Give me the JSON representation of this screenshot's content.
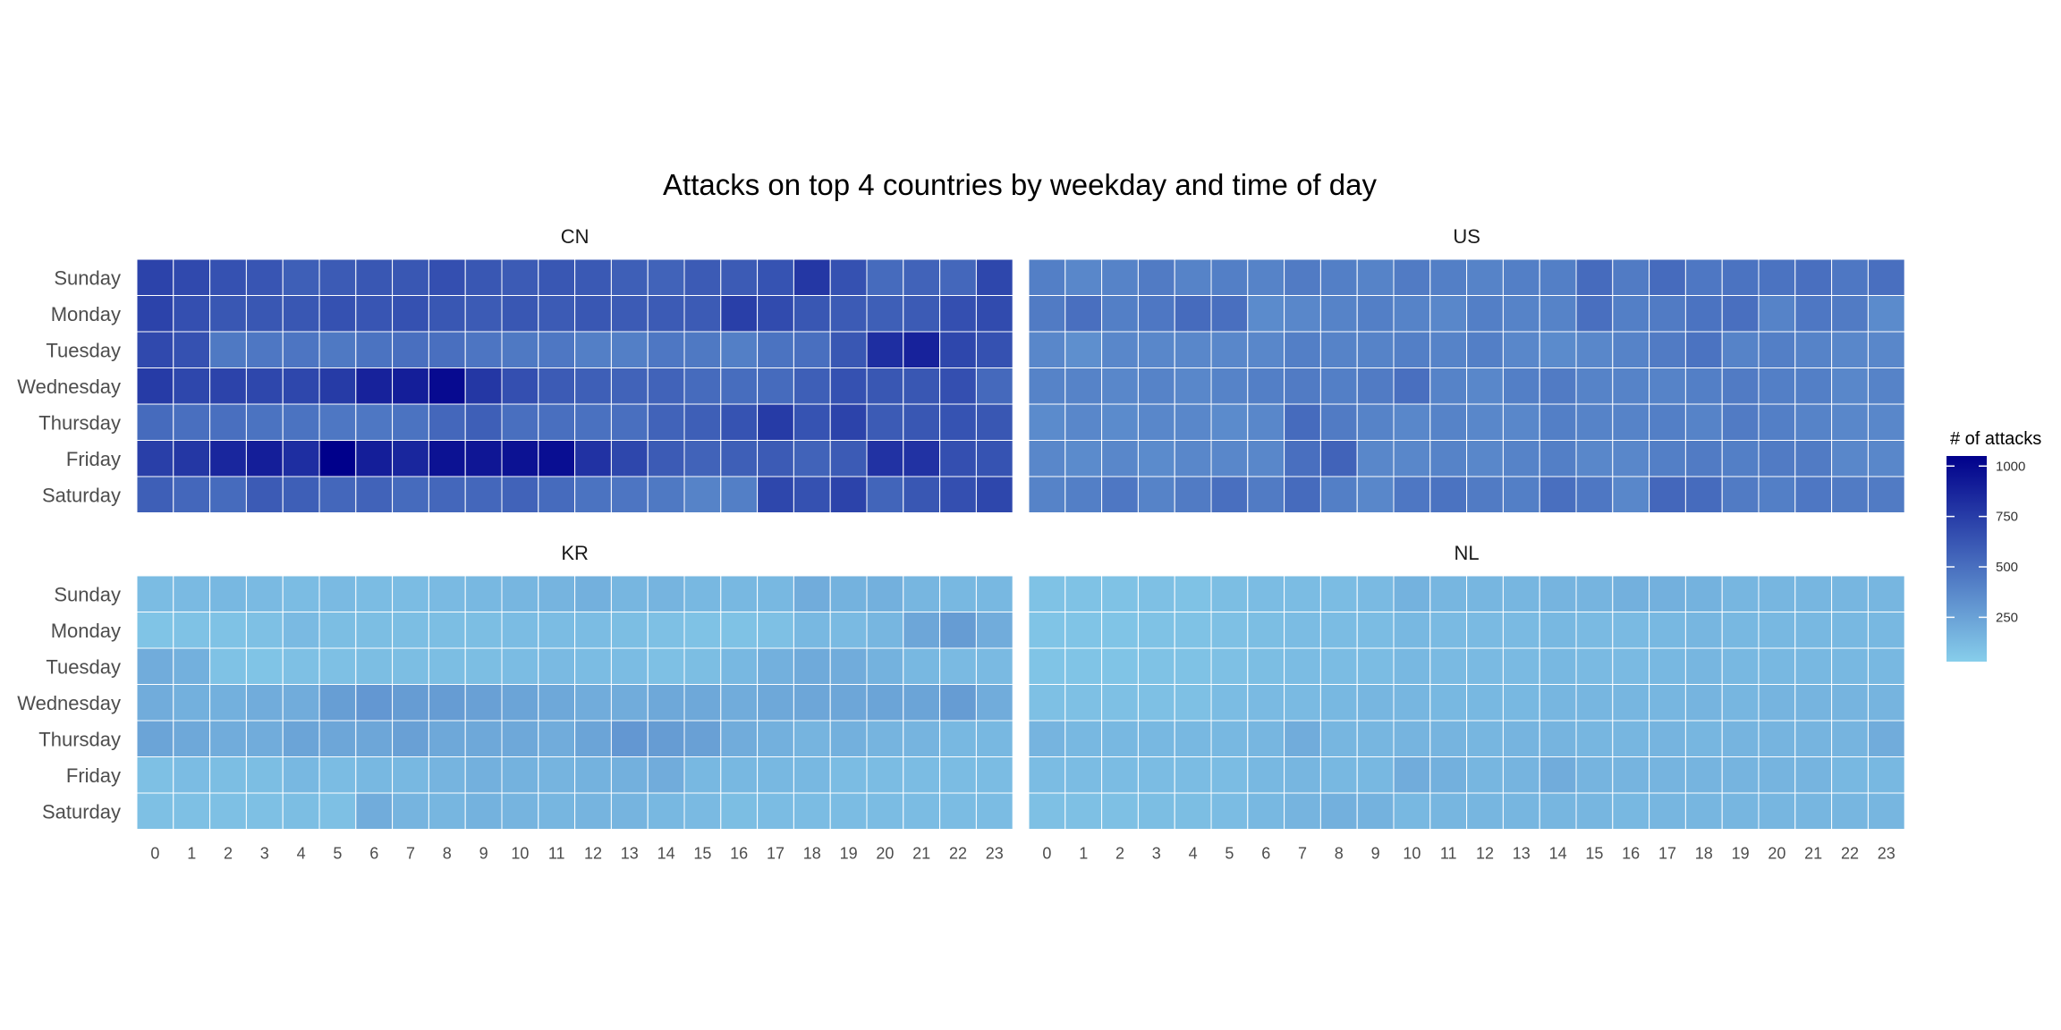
{
  "chart_data": {
    "type": "heatmap",
    "title": "Attacks on top 4 countries by weekday and time of day",
    "x": [
      "0",
      "1",
      "2",
      "3",
      "4",
      "5",
      "6",
      "7",
      "8",
      "9",
      "10",
      "11",
      "12",
      "13",
      "14",
      "15",
      "16",
      "17",
      "18",
      "19",
      "20",
      "21",
      "22",
      "23"
    ],
    "y": [
      "Sunday",
      "Monday",
      "Tuesday",
      "Wednesday",
      "Thursday",
      "Friday",
      "Saturday"
    ],
    "legend": {
      "title": "# of attacks",
      "ticks": [
        "250",
        "500",
        "750",
        "1000"
      ],
      "tick_values": [
        250,
        500,
        750,
        1000
      ],
      "min": 30,
      "max": 1050,
      "low_color": "#87ceeb",
      "high_color": "#00008b",
      "placement": "right"
    },
    "grid": false,
    "panels": [
      {
        "name": "CN",
        "values": [
          [
            720,
            690,
            650,
            630,
            580,
            600,
            620,
            620,
            660,
            620,
            600,
            620,
            610,
            580,
            560,
            600,
            600,
            640,
            780,
            650,
            520,
            560,
            540,
            700
          ],
          [
            720,
            660,
            620,
            620,
            620,
            650,
            630,
            650,
            620,
            600,
            620,
            600,
            620,
            600,
            600,
            600,
            740,
            680,
            620,
            600,
            580,
            600,
            660,
            680
          ],
          [
            690,
            650,
            450,
            460,
            470,
            450,
            480,
            500,
            500,
            470,
            450,
            460,
            420,
            420,
            460,
            450,
            420,
            480,
            500,
            620,
            820,
            880,
            700,
            650
          ],
          [
            760,
            700,
            720,
            700,
            700,
            760,
            880,
            900,
            1000,
            780,
            660,
            600,
            580,
            560,
            560,
            520,
            510,
            520,
            580,
            650,
            620,
            620,
            660,
            530
          ],
          [
            520,
            500,
            500,
            480,
            480,
            460,
            460,
            480,
            540,
            580,
            500,
            500,
            490,
            500,
            560,
            580,
            640,
            760,
            640,
            720,
            600,
            620,
            640,
            620
          ],
          [
            740,
            780,
            860,
            900,
            820,
            1050,
            900,
            860,
            960,
            940,
            960,
            980,
            800,
            700,
            600,
            560,
            580,
            600,
            560,
            600,
            800,
            800,
            660,
            640
          ],
          [
            580,
            540,
            520,
            600,
            580,
            540,
            560,
            520,
            540,
            540,
            560,
            520,
            480,
            470,
            450,
            400,
            420,
            700,
            650,
            720,
            550,
            620,
            660,
            700
          ]
        ]
      },
      {
        "name": "US",
        "values": [
          [
            420,
            380,
            400,
            440,
            400,
            420,
            400,
            440,
            420,
            400,
            440,
            420,
            400,
            420,
            420,
            520,
            440,
            520,
            460,
            480,
            480,
            500,
            460,
            500
          ],
          [
            440,
            500,
            420,
            460,
            520,
            500,
            360,
            380,
            400,
            420,
            400,
            380,
            420,
            400,
            400,
            500,
            420,
            440,
            480,
            500,
            400,
            460,
            440,
            360
          ],
          [
            380,
            340,
            380,
            380,
            380,
            380,
            380,
            420,
            400,
            400,
            420,
            400,
            420,
            380,
            360,
            380,
            400,
            440,
            480,
            400,
            420,
            400,
            380,
            380
          ],
          [
            400,
            400,
            380,
            400,
            380,
            400,
            420,
            440,
            420,
            440,
            500,
            400,
            380,
            420,
            440,
            400,
            400,
            400,
            420,
            440,
            420,
            420,
            380,
            400
          ],
          [
            360,
            380,
            360,
            380,
            380,
            360,
            380,
            520,
            440,
            400,
            380,
            400,
            380,
            380,
            420,
            400,
            400,
            420,
            400,
            440,
            420,
            400,
            380,
            380
          ],
          [
            380,
            360,
            380,
            360,
            380,
            380,
            380,
            500,
            560,
            380,
            380,
            400,
            380,
            400,
            420,
            380,
            380,
            420,
            440,
            420,
            440,
            440,
            380,
            380
          ],
          [
            400,
            420,
            460,
            400,
            440,
            500,
            440,
            520,
            420,
            380,
            460,
            480,
            440,
            420,
            500,
            460,
            380,
            540,
            520,
            440,
            420,
            460,
            440,
            440
          ]
        ]
      },
      {
        "name": "KR",
        "values": [
          [
            120,
            130,
            140,
            130,
            120,
            130,
            120,
            120,
            130,
            140,
            150,
            160,
            180,
            150,
            160,
            140,
            140,
            140,
            200,
            170,
            180,
            150,
            140,
            140
          ],
          [
            80,
            90,
            90,
            100,
            130,
            110,
            110,
            110,
            110,
            110,
            120,
            120,
            120,
            110,
            100,
            90,
            90,
            100,
            140,
            130,
            150,
            230,
            280,
            200
          ],
          [
            200,
            180,
            90,
            80,
            100,
            100,
            110,
            110,
            110,
            110,
            120,
            130,
            120,
            120,
            100,
            110,
            140,
            180,
            210,
            200,
            170,
            140,
            130,
            130
          ],
          [
            200,
            180,
            180,
            200,
            200,
            270,
            300,
            280,
            280,
            260,
            240,
            220,
            200,
            200,
            220,
            220,
            200,
            220,
            230,
            230,
            240,
            240,
            280,
            200
          ],
          [
            240,
            220,
            200,
            200,
            240,
            230,
            230,
            260,
            220,
            220,
            220,
            200,
            240,
            300,
            280,
            260,
            200,
            180,
            160,
            180,
            160,
            160,
            140,
            140
          ],
          [
            100,
            120,
            110,
            110,
            140,
            120,
            140,
            140,
            160,
            180,
            170,
            160,
            170,
            180,
            200,
            140,
            140,
            140,
            140,
            120,
            120,
            120,
            120,
            120
          ],
          [
            100,
            100,
            100,
            100,
            110,
            100,
            200,
            160,
            150,
            170,
            160,
            150,
            160,
            160,
            140,
            130,
            110,
            120,
            120,
            120,
            120,
            120,
            120,
            120
          ]
        ]
      },
      {
        "name": "NL",
        "values": [
          [
            90,
            90,
            90,
            100,
            90,
            110,
            120,
            120,
            120,
            130,
            170,
            150,
            150,
            150,
            160,
            160,
            180,
            180,
            170,
            150,
            150,
            150,
            150,
            150
          ],
          [
            80,
            80,
            80,
            90,
            90,
            100,
            110,
            120,
            120,
            120,
            140,
            130,
            130,
            130,
            140,
            130,
            130,
            140,
            150,
            140,
            140,
            140,
            140,
            140
          ],
          [
            80,
            80,
            80,
            90,
            90,
            100,
            110,
            120,
            120,
            120,
            140,
            130,
            130,
            130,
            140,
            130,
            130,
            140,
            150,
            140,
            140,
            140,
            140,
            140
          ],
          [
            100,
            100,
            100,
            100,
            100,
            120,
            130,
            130,
            140,
            150,
            150,
            140,
            140,
            140,
            150,
            150,
            150,
            150,
            160,
            150,
            160,
            160,
            160,
            160
          ],
          [
            160,
            140,
            140,
            140,
            140,
            140,
            150,
            200,
            150,
            150,
            160,
            160,
            150,
            160,
            160,
            150,
            150,
            160,
            150,
            160,
            160,
            160,
            160,
            200
          ],
          [
            120,
            120,
            120,
            120,
            120,
            120,
            140,
            150,
            140,
            140,
            200,
            180,
            150,
            160,
            200,
            160,
            160,
            160,
            160,
            160,
            160,
            160,
            140,
            140
          ],
          [
            100,
            100,
            100,
            110,
            110,
            120,
            140,
            160,
            180,
            170,
            140,
            150,
            150,
            150,
            150,
            150,
            140,
            150,
            150,
            150,
            150,
            150,
            150,
            150
          ]
        ]
      }
    ]
  }
}
